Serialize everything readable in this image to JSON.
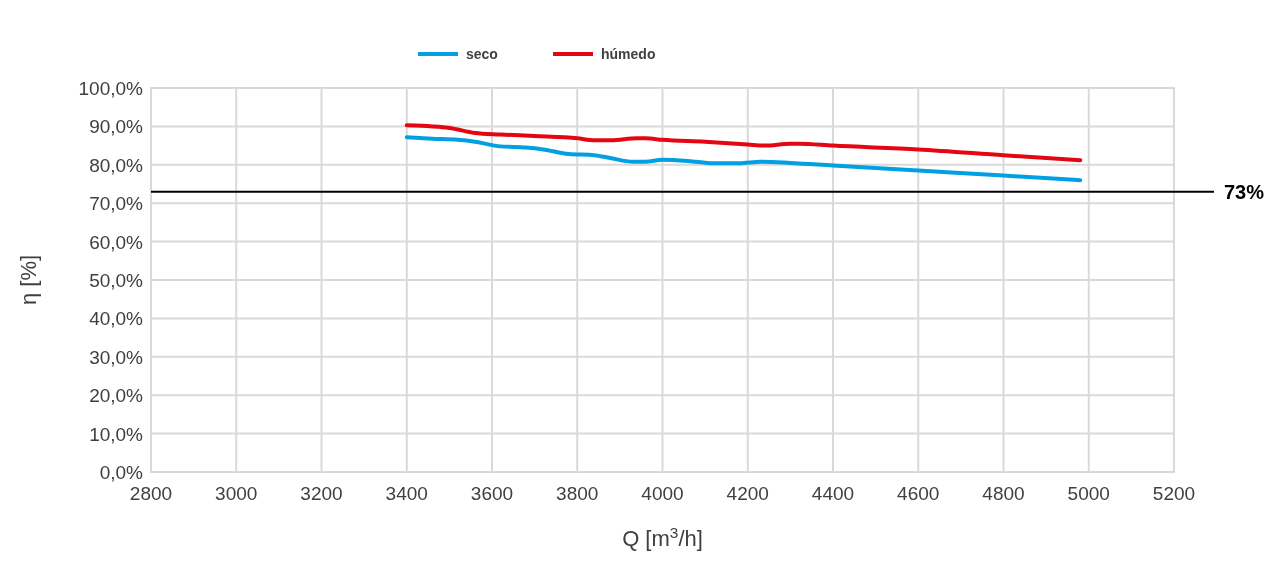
{
  "chart_data": {
    "type": "line",
    "xlabel": "Q [m$^{3}$/h]",
    "ylabel": "η [%]",
    "xlim": [
      2800,
      5200
    ],
    "xticks": [
      2800,
      3000,
      3200,
      3400,
      3600,
      3800,
      4000,
      4200,
      4400,
      4600,
      4800,
      5000,
      5200
    ],
    "ylim": [
      0,
      100
    ],
    "yticks": [
      {
        "value": 0,
        "label": "0,0%"
      },
      {
        "value": 10,
        "label": "10,0%"
      },
      {
        "value": 20,
        "label": "20,0%"
      },
      {
        "value": 30,
        "label": "30,0%"
      },
      {
        "value": 40,
        "label": "40,0%"
      },
      {
        "value": 50,
        "label": "50,0%"
      },
      {
        "value": 60,
        "label": "60,0%"
      },
      {
        "value": 70,
        "label": "70,0%"
      },
      {
        "value": 80,
        "label": "80,0%"
      },
      {
        "value": 90,
        "label": "90,0%"
      },
      {
        "value": 100,
        "label": "100,0%"
      }
    ],
    "grid": true,
    "legend": "top",
    "marker": "none",
    "line_style": "solid",
    "ref_lines": [
      {
        "axis": "y",
        "value": 73,
        "label": "73%",
        "color": "#000000"
      }
    ],
    "series": [
      {
        "name": "seco",
        "color": "#00a0e3",
        "x": [
          3400,
          3460,
          3520,
          3560,
          3620,
          3680,
          3720,
          3780,
          3840,
          3880,
          3930,
          3960,
          4000,
          4060,
          4120,
          4180,
          4230,
          4300,
          4400,
          4600,
          4800,
          4980
        ],
        "values": [
          87.2,
          86.8,
          86.5,
          86.0,
          84.8,
          84.5,
          84.0,
          82.8,
          82.5,
          81.7,
          80.8,
          80.8,
          81.3,
          81.0,
          80.4,
          80.4,
          80.8,
          80.5,
          79.8,
          78.5,
          77.2,
          76.0
        ]
      },
      {
        "name": "húmedo",
        "color": "#e30613",
        "x": [
          3400,
          3460,
          3500,
          3560,
          3620,
          3700,
          3800,
          3840,
          3880,
          3940,
          3960,
          4000,
          4100,
          4200,
          4240,
          4300,
          4320,
          4400,
          4600,
          4800,
          4980
        ],
        "values": [
          90.3,
          90.0,
          89.6,
          88.3,
          87.9,
          87.5,
          86.9,
          86.4,
          86.4,
          86.9,
          86.9,
          86.5,
          86.0,
          85.3,
          85.0,
          85.5,
          85.5,
          85.0,
          84.0,
          82.5,
          81.2
        ]
      }
    ]
  }
}
